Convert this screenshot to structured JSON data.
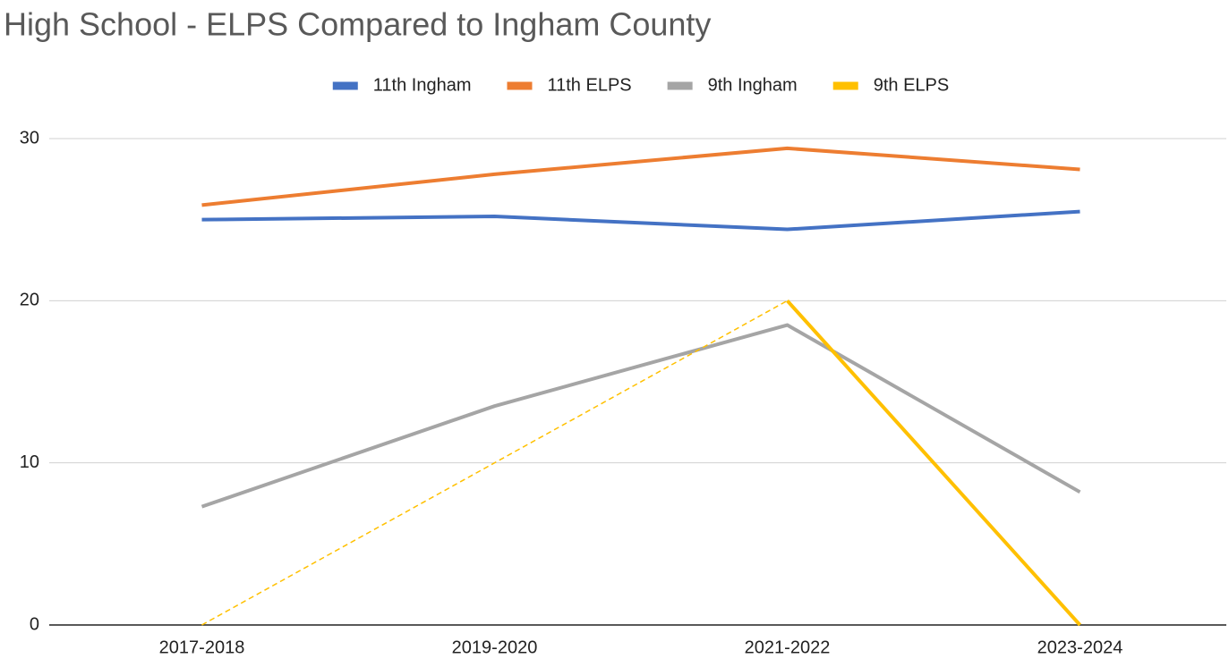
{
  "chart_data": {
    "type": "line",
    "title": "High School - ELPS Compared to Ingham County",
    "categories": [
      "2017-2018",
      "2019-2020",
      "2021-2022",
      "2023-2024"
    ],
    "series": [
      {
        "name": "11th Ingham",
        "color": "#4472c4",
        "values": [
          25,
          25.2,
          24.4,
          25.5
        ]
      },
      {
        "name": "11th ELPS",
        "color": "#ed7d31",
        "values": [
          25.9,
          27.8,
          29.4,
          28.1
        ]
      },
      {
        "name": "9th Ingham",
        "color": "#a5a5a5",
        "values": [
          7.3,
          13.5,
          18.5,
          8.2
        ]
      },
      {
        "name": "9th ELPS",
        "color": "#ffc000",
        "values": [
          0,
          null,
          20,
          0
        ]
      }
    ],
    "ylim": [
      0,
      30
    ],
    "yticks": [
      0,
      10,
      20,
      30
    ],
    "grid": true,
    "legend": "top",
    "gaps": "dashed"
  }
}
